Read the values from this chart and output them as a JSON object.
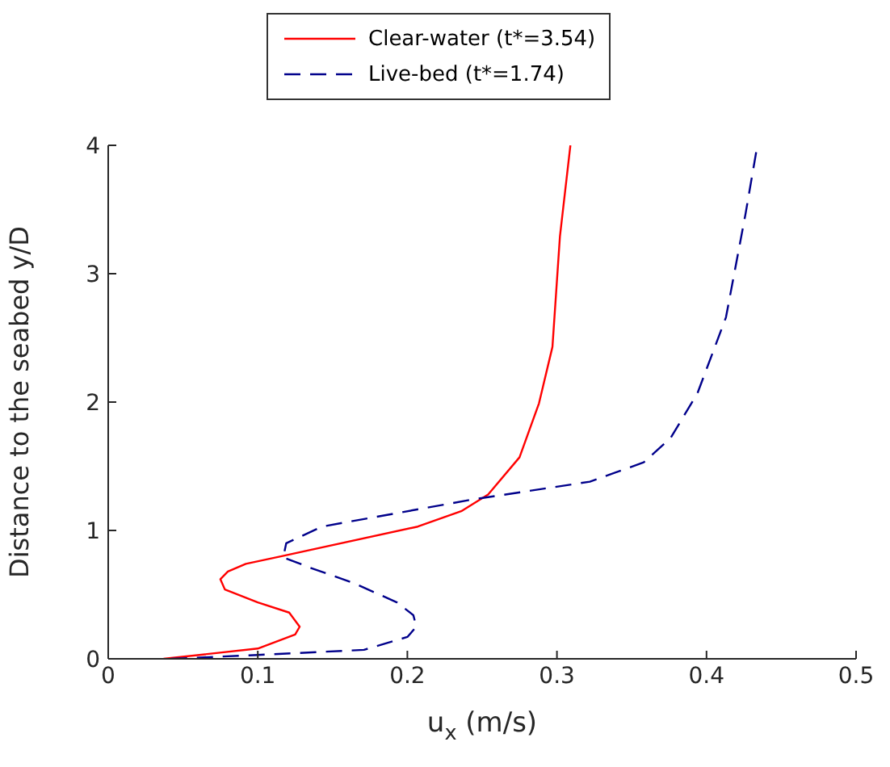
{
  "chart_data": {
    "type": "line",
    "xlabel": "u$_{x}$ (m/s)",
    "ylabel": "Distance to the seabed y/D",
    "xlim": [
      0,
      0.5
    ],
    "xticks": [
      0,
      0.1,
      0.2,
      0.3,
      0.4,
      0.5
    ],
    "ylim": [
      0,
      4
    ],
    "yticks": [
      0,
      1,
      2,
      3,
      4
    ],
    "grid": false,
    "legend": "top",
    "marker": "none",
    "series": [
      {
        "name": "Clear-water (t*=3.54)",
        "color": "#ff0000",
        "line_style": "solid",
        "x": [
          0.037,
          0.1,
          0.125,
          0.128,
          0.121,
          0.1,
          0.078,
          0.075,
          0.08,
          0.092,
          0.116,
          0.207,
          0.236,
          0.254,
          0.275,
          0.288,
          0.297,
          0.302,
          0.309
        ],
        "values": [
          0,
          0.08,
          0.19,
          0.25,
          0.36,
          0.44,
          0.54,
          0.62,
          0.68,
          0.74,
          0.8,
          1.03,
          1.15,
          1.28,
          1.57,
          1.99,
          2.43,
          3.29,
          4
        ]
      },
      {
        "name": "Live-bed (t*=1.74)",
        "color": "#00008b",
        "line_style": "dashed",
        "x": [
          0.042,
          0.1,
          0.171,
          0.2,
          0.206,
          0.204,
          0.193,
          0.164,
          0.135,
          0.117,
          0.119,
          0.143,
          0.243,
          0.322,
          0.358,
          0.376,
          0.394,
          0.413,
          0.426,
          0.434
        ],
        "values": [
          0,
          0.03,
          0.07,
          0.17,
          0.25,
          0.34,
          0.44,
          0.59,
          0.71,
          0.79,
          0.9,
          1.03,
          1.24,
          1.38,
          1.53,
          1.72,
          2.07,
          2.66,
          3.46,
          4
        ]
      }
    ]
  }
}
